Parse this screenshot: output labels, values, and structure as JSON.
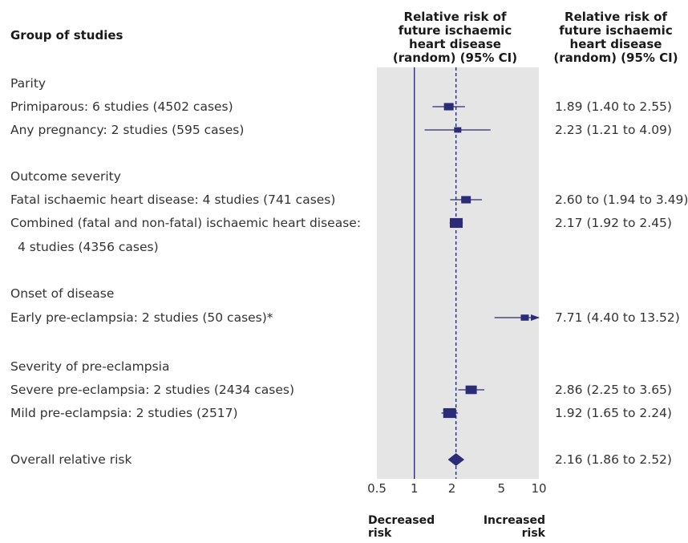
{
  "headers": {
    "group": "Group of studies",
    "plot": [
      "Relative risk of",
      "future ischaemic",
      "heart disease",
      "(random) (95% CI)"
    ],
    "ci": [
      "Relative risk of",
      "future ischaemic",
      "heart disease",
      "(random) (95% CI)"
    ]
  },
  "footer": {
    "decreased": [
      "Decreased",
      "risk"
    ],
    "increased": [
      "Increased",
      "risk"
    ]
  },
  "colors": {
    "marker": "#2b2b77",
    "panel": "#e5e5e5",
    "line": "#2b2b77"
  },
  "chart_data": {
    "type": "forest",
    "x_scale": "log",
    "xlim": [
      0.5,
      10
    ],
    "x_ticks": [
      "0.5",
      "1",
      "2",
      "5",
      "10"
    ],
    "reference_line": 1,
    "overall_line": 2.16,
    "rows": [
      {
        "label": "Parity",
        "kind": "heading"
      },
      {
        "label": "Primiparous: 6 studies (4502 cases)",
        "kind": "study",
        "rr": 1.89,
        "lo": 1.4,
        "hi": 2.55,
        "ci_text": "1.89 (1.40 to 2.55)"
      },
      {
        "label": "Any pregnancy: 2 studies (595 cases)",
        "kind": "study",
        "rr": 2.23,
        "lo": 1.21,
        "hi": 4.09,
        "ci_text": "2.23 (1.21 to 4.09)"
      },
      {
        "label": "Outcome severity",
        "kind": "heading"
      },
      {
        "label": "Fatal ischaemic heart disease: 4 studies (741 cases)",
        "kind": "study",
        "rr": 2.6,
        "lo": 1.94,
        "hi": 3.49,
        "ci_text": "2.60 to (1.94 to 3.49)"
      },
      {
        "label": "Combined (fatal and non-fatal) ischaemic heart disease:",
        "label2": "4 studies (4356 cases)",
        "kind": "study",
        "rr": 2.17,
        "lo": 1.92,
        "hi": 2.45,
        "ci_text": "2.17 (1.92 to 2.45)"
      },
      {
        "label": "Onset of disease",
        "kind": "heading"
      },
      {
        "label": "Early pre-eclampsia: 2 studies (50 cases)*",
        "kind": "study",
        "rr": 7.71,
        "lo": 4.4,
        "hi": 13.52,
        "ci_text": "7.71 (4.40 to 13.52)",
        "arrow_right": true
      },
      {
        "label": "Severity of pre-eclampsia",
        "kind": "heading"
      },
      {
        "label": "Severe pre-eclampsia: 2 studies (2434 cases)",
        "kind": "study",
        "rr": 2.86,
        "lo": 2.25,
        "hi": 3.65,
        "ci_text": "2.86 (2.25 to 3.65)"
      },
      {
        "label": "Mild pre-eclampsia: 2 studies (2517)",
        "kind": "study",
        "rr": 1.92,
        "lo": 1.65,
        "hi": 2.24,
        "ci_text": "1.92 (1.65 to 2.24)"
      },
      {
        "label": "Overall relative risk",
        "kind": "overall",
        "rr": 2.16,
        "lo": 1.86,
        "hi": 2.52,
        "ci_text": "2.16 (1.86 to 2.52)"
      }
    ]
  }
}
